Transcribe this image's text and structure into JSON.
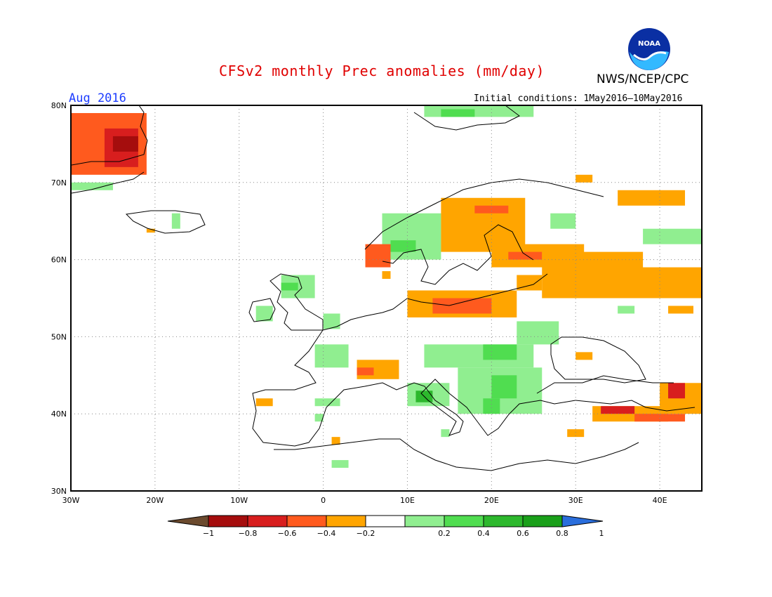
{
  "header": {
    "title": "CFSv2 monthly Prec anomalies (mm/day)",
    "agency": "NWS/NCEP/CPC",
    "logo_text": "NOAA",
    "valid_month": "Aug 2016",
    "initial_conditions": "Initial conditions: 1May2016–10May2016"
  },
  "map": {
    "lon_range": [
      -30,
      45
    ],
    "lat_range": [
      30,
      80
    ],
    "grid": "dotted",
    "lat_labels": [
      "80N",
      "70N",
      "60N",
      "50N",
      "40N",
      "30N"
    ],
    "lon_labels": [
      "30W",
      "20W",
      "10W",
      "0",
      "10E",
      "20E",
      "30E",
      "40E"
    ],
    "land_color": "#ffffff",
    "coast_color": "#000000"
  },
  "colorbar": {
    "labels": [
      "−1",
      "−0.8",
      "−0.6",
      "−0.4",
      "−0.2",
      "0.2",
      "0.4",
      "0.6",
      "0.8",
      "1"
    ],
    "bins": [
      {
        "range": "<-1",
        "color": "#6b4a2e"
      },
      {
        "range": "-1 to -0.8",
        "color": "#a50d0d"
      },
      {
        "range": "-0.8 to -0.6",
        "color": "#d81e1e"
      },
      {
        "range": "-0.6 to -0.4",
        "color": "#ff5a1e"
      },
      {
        "range": "-0.4 to -0.2",
        "color": "#ffa500"
      },
      {
        "range": "-0.2 to 0.2",
        "color": "#ffffff"
      },
      {
        "range": "0.2 to 0.4",
        "color": "#90ee90"
      },
      {
        "range": "0.4 to 0.6",
        "color": "#50dd50"
      },
      {
        "range": "0.6 to 0.8",
        "color": "#2db82d"
      },
      {
        "range": "0.8 to 1",
        "color": "#1aa01a"
      },
      {
        "range": ">1",
        "color": "#2a6edc"
      }
    ]
  },
  "anomaly_regions": [
    {
      "name": "east-greenland",
      "lon": [
        -30,
        -21
      ],
      "lat": [
        71,
        79
      ],
      "value": -0.5
    },
    {
      "name": "east-greenland-core",
      "lon": [
        -26,
        -22
      ],
      "lat": [
        72,
        77
      ],
      "value": -0.7
    },
    {
      "name": "east-greenland-max",
      "lon": [
        -25,
        -22
      ],
      "lat": [
        74,
        76
      ],
      "value": -0.9
    },
    {
      "name": "greenland-south",
      "lon": [
        -30,
        -25
      ],
      "lat": [
        69,
        70
      ],
      "value": 0.3
    },
    {
      "name": "iceland-east",
      "lon": [
        -18,
        -17
      ],
      "lat": [
        64,
        66
      ],
      "value": 0.3
    },
    {
      "name": "iceland-southwest",
      "lon": [
        -21,
        -20
      ],
      "lat": [
        63.5,
        64
      ],
      "value": -0.3
    },
    {
      "name": "svalbard",
      "lon": [
        12,
        25
      ],
      "lat": [
        78.5,
        80
      ],
      "value": 0.3
    },
    {
      "name": "svalbard-core",
      "lon": [
        14,
        18
      ],
      "lat": [
        78.5,
        79.5
      ],
      "value": 0.5
    },
    {
      "name": "norway-coast",
      "lon": [
        7,
        14
      ],
      "lat": [
        60,
        66
      ],
      "value": 0.3
    },
    {
      "name": "norway-core",
      "lon": [
        8,
        11
      ],
      "lat": [
        61,
        62.5
      ],
      "value": 0.5
    },
    {
      "name": "norway-southwest",
      "lon": [
        5,
        8
      ],
      "lat": [
        59,
        62
      ],
      "value": -0.5
    },
    {
      "name": "norway-south",
      "lon": [
        7,
        8
      ],
      "lat": [
        57.5,
        58.5
      ],
      "value": -0.3
    },
    {
      "name": "scandinavia-north",
      "lon": [
        14,
        24
      ],
      "lat": [
        61,
        68
      ],
      "value": -0.3
    },
    {
      "name": "sweden-north",
      "lon": [
        18,
        22
      ],
      "lat": [
        66,
        67
      ],
      "value": -0.6
    },
    {
      "name": "finland",
      "lon": [
        20,
        31
      ],
      "lat": [
        59,
        62
      ],
      "value": -0.3
    },
    {
      "name": "finland-south",
      "lon": [
        22,
        26
      ],
      "lat": [
        60,
        61
      ],
      "value": -0.6
    },
    {
      "name": "finland-north",
      "lon": [
        27,
        30
      ],
      "lat": [
        64,
        66
      ],
      "value": 0.3
    },
    {
      "name": "kola",
      "lon": [
        35,
        43
      ],
      "lat": [
        67,
        69
      ],
      "value": -0.3
    },
    {
      "name": "kola-north",
      "lon": [
        30,
        32
      ],
      "lat": [
        70,
        71
      ],
      "value": -0.3
    },
    {
      "name": "baltic-south",
      "lon": [
        10,
        23
      ],
      "lat": [
        52.5,
        56
      ],
      "value": -0.3
    },
    {
      "name": "baltic-core",
      "lon": [
        13,
        20
      ],
      "lat": [
        53,
        55
      ],
      "value": -0.6
    },
    {
      "name": "baltic-east",
      "lon": [
        23,
        26
      ],
      "lat": [
        56,
        58
      ],
      "value": -0.3
    },
    {
      "name": "western-russia",
      "lon": [
        26,
        38
      ],
      "lat": [
        55,
        61
      ],
      "value": -0.3
    },
    {
      "name": "russia-east",
      "lon": [
        35,
        45
      ],
      "lat": [
        55,
        59
      ],
      "value": -0.3
    },
    {
      "name": "russia-northeast",
      "lon": [
        38,
        45
      ],
      "lat": [
        62,
        64
      ],
      "value": 0.3
    },
    {
      "name": "russia-far-east",
      "lon": [
        41,
        44
      ],
      "lat": [
        53,
        54
      ],
      "value": -0.3
    },
    {
      "name": "russia-east-small",
      "lon": [
        35,
        37
      ],
      "lat": [
        53,
        54
      ],
      "value": 0.3
    },
    {
      "name": "scotland",
      "lon": [
        -5,
        -1
      ],
      "lat": [
        55,
        58
      ],
      "value": 0.3
    },
    {
      "name": "scotland-west",
      "lon": [
        -5,
        -3
      ],
      "lat": [
        56,
        57
      ],
      "value": 0.5
    },
    {
      "name": "ireland",
      "lon": [
        -8,
        -6
      ],
      "lat": [
        52,
        54
      ],
      "value": 0.3
    },
    {
      "name": "england",
      "lon": [
        0,
        2
      ],
      "lat": [
        51,
        53
      ],
      "value": 0.3
    },
    {
      "name": "france",
      "lon": [
        -1,
        3
      ],
      "lat": [
        46,
        49
      ],
      "value": 0.3
    },
    {
      "name": "alps-west",
      "lon": [
        4,
        9
      ],
      "lat": [
        44.5,
        47
      ],
      "value": -0.3
    },
    {
      "name": "alps-core",
      "lon": [
        4,
        6
      ],
      "lat": [
        45,
        46
      ],
      "value": -0.5
    },
    {
      "name": "spain-northwest",
      "lon": [
        -8,
        -6
      ],
      "lat": [
        41,
        42
      ],
      "value": -0.3
    },
    {
      "name": "spain-north",
      "lon": [
        -1,
        2
      ],
      "lat": [
        41,
        42
      ],
      "value": 0.3
    },
    {
      "name": "iberia-south",
      "lon": [
        -1,
        0
      ],
      "lat": [
        39,
        40
      ],
      "value": 0.3
    },
    {
      "name": "italy-north",
      "lon": [
        10,
        15
      ],
      "lat": [
        41,
        44
      ],
      "value": 0.3
    },
    {
      "name": "italy-core",
      "lon": [
        11,
        13
      ],
      "lat": [
        41.5,
        43
      ],
      "value": 0.6
    },
    {
      "name": "central-europe",
      "lon": [
        12,
        25
      ],
      "lat": [
        46,
        49
      ],
      "value": 0.3
    },
    {
      "name": "hungary",
      "lon": [
        19,
        23
      ],
      "lat": [
        47,
        49
      ],
      "value": 0.5
    },
    {
      "name": "poland-east",
      "lon": [
        23,
        28
      ],
      "lat": [
        49,
        52
      ],
      "value": 0.3
    },
    {
      "name": "balkans",
      "lon": [
        16,
        26
      ],
      "lat": [
        40,
        46
      ],
      "value": 0.3
    },
    {
      "name": "balkans-core",
      "lon": [
        20,
        23
      ],
      "lat": [
        42,
        45
      ],
      "value": 0.5
    },
    {
      "name": "albania",
      "lon": [
        19,
        21
      ],
      "lat": [
        40,
        42
      ],
      "value": 0.5
    },
    {
      "name": "sicily",
      "lon": [
        14,
        15
      ],
      "lat": [
        37,
        38
      ],
      "value": 0.3
    },
    {
      "name": "north-africa",
      "lon": [
        1,
        3
      ],
      "lat": [
        33,
        34
      ],
      "value": 0.3
    },
    {
      "name": "morocco-north",
      "lon": [
        1,
        2
      ],
      "lat": [
        36,
        37
      ],
      "value": -0.3
    },
    {
      "name": "ukraine-south",
      "lon": [
        30,
        32
      ],
      "lat": [
        47,
        48
      ],
      "value": -0.3
    },
    {
      "name": "turkey-north",
      "lon": [
        32,
        41
      ],
      "lat": [
        39,
        41
      ],
      "value": -0.3
    },
    {
      "name": "turkey-core",
      "lon": [
        33,
        37
      ],
      "lat": [
        40,
        41
      ],
      "value": -0.7
    },
    {
      "name": "turkey-east",
      "lon": [
        37,
        43
      ],
      "lat": [
        39,
        40
      ],
      "value": -0.5
    },
    {
      "name": "caucasus",
      "lon": [
        40,
        45
      ],
      "lat": [
        40,
        44
      ],
      "value": -0.3
    },
    {
      "name": "caucasus-core",
      "lon": [
        41,
        43
      ],
      "lat": [
        42,
        44
      ],
      "value": -0.7
    },
    {
      "name": "turkey-south",
      "lon": [
        29,
        31
      ],
      "lat": [
        37,
        38
      ],
      "value": -0.3
    }
  ]
}
